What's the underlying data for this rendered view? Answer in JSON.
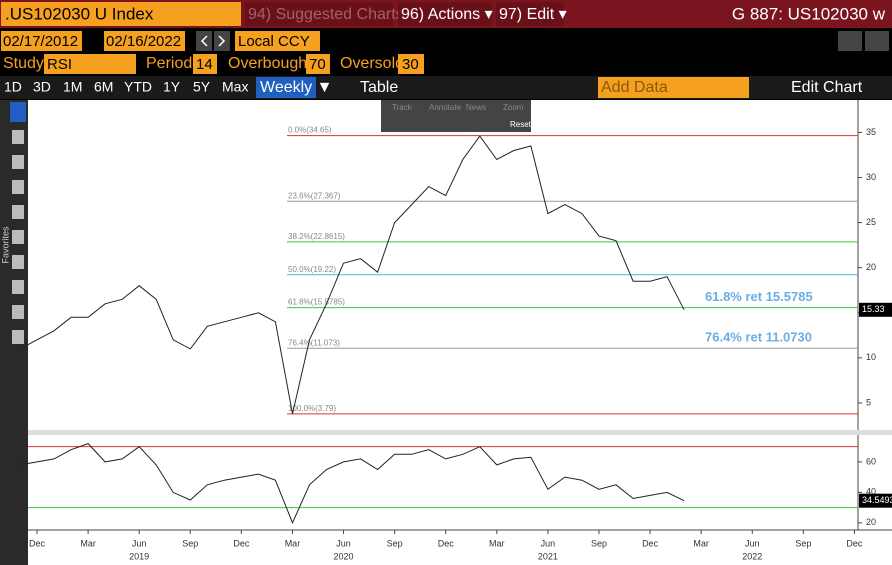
{
  "header": {
    "ticker": ".US102030 U  Index",
    "suggested": "94) Suggested Charts",
    "actions": "96) Actions ▾",
    "edit": "97) Edit ▾",
    "code": "G 887: US102030 w"
  },
  "dates": {
    "start": "02/17/2012",
    "end": "02/16/2022",
    "currency": "Local CCY"
  },
  "study": {
    "label": "Study",
    "name": "RSI",
    "period_label": "Period",
    "period": 14,
    "overbought_label": "Overbought",
    "overbought": 70,
    "oversold_label": "Oversold",
    "oversold": 30
  },
  "ranges": [
    "1D",
    "3D",
    "1M",
    "6M",
    "YTD",
    "1Y",
    "5Y",
    "Max"
  ],
  "frequency": "Weekly ▼",
  "table": "Table",
  "add_data": "Add Data",
  "edit_chart": "Edit Chart",
  "chart_tools": [
    "Track",
    "Annotate",
    "News",
    "Zoom",
    "Reset"
  ],
  "sidebar": "Favorites",
  "chart_data": [
    {
      "type": "line",
      "color": "#222222",
      "x": [
        "2018-11",
        "2018-12",
        "2019-01",
        "2019-02",
        "2019-03",
        "2019-04",
        "2019-05",
        "2019-06",
        "2019-07",
        "2019-08",
        "2019-09",
        "2019-10",
        "2019-11",
        "2019-12",
        "2020-01",
        "2020-02",
        "2020-03",
        "2020-04",
        "2020-05",
        "2020-06",
        "2020-07",
        "2020-08",
        "2020-09",
        "2020-10",
        "2020-11",
        "2020-12",
        "2021-01",
        "2021-02",
        "2021-03",
        "2021-04",
        "2021-05",
        "2021-06",
        "2021-07",
        "2021-08",
        "2021-09",
        "2021-10",
        "2021-11",
        "2021-12",
        "2022-01",
        "2022-02"
      ],
      "values": [
        11,
        12,
        13,
        14.5,
        14.5,
        16,
        16.5,
        18,
        16.5,
        12,
        11,
        13.5,
        14,
        14.5,
        15,
        14,
        3.8,
        12,
        16,
        20.5,
        21,
        19.5,
        25,
        27,
        29,
        28,
        32,
        34.6,
        32,
        33,
        33.5,
        26,
        27,
        26,
        23.5,
        23,
        18.5,
        18.5,
        19,
        15.33
      ],
      "ylim": [
        2,
        38.6
      ],
      "yticks": [
        5,
        10,
        15,
        20,
        25,
        30,
        35
      ],
      "levels": [
        {
          "label": "0.0%(34.65)",
          "value": 34.65,
          "color": "#e03030"
        },
        {
          "label": "23.6%(27.367)",
          "value": 27.367,
          "color": "#999999"
        },
        {
          "label": "38.2%(22.8615)",
          "value": 22.8615,
          "color": "#3cc83c"
        },
        {
          "label": "50.0%(19.22)",
          "value": 19.22,
          "color": "#33c7d6"
        },
        {
          "label": "61.8%(15.5785)",
          "value": 15.5785,
          "color": "#3cc83c"
        },
        {
          "label": "76.4%(11.073)",
          "value": 11.073,
          "color": "#999999"
        },
        {
          "label": "100.0%(3.79)",
          "value": 3.79,
          "color": "#e03030"
        }
      ],
      "annotations": [
        {
          "text": "61.8% ret 15.5785",
          "value": 15.5785
        },
        {
          "text": "76.4% ret 11.0730",
          "value": 11.073
        }
      ]
    },
    {
      "type": "line",
      "color": "#222222",
      "overbought_color": "#e03030",
      "oversold_color": "#3cc83c",
      "x": [
        "2018-11",
        "2018-12",
        "2019-01",
        "2019-02",
        "2019-03",
        "2019-04",
        "2019-05",
        "2019-06",
        "2019-07",
        "2019-08",
        "2019-09",
        "2019-10",
        "2019-11",
        "2019-12",
        "2020-01",
        "2020-02",
        "2020-03",
        "2020-04",
        "2020-05",
        "2020-06",
        "2020-07",
        "2020-08",
        "2020-09",
        "2020-10",
        "2020-11",
        "2020-12",
        "2021-01",
        "2021-02",
        "2021-03",
        "2021-04",
        "2021-05",
        "2021-06",
        "2021-07",
        "2021-08",
        "2021-09",
        "2021-10",
        "2021-11",
        "2021-12",
        "2022-01",
        "2022-02"
      ],
      "values": [
        58,
        60,
        62,
        68,
        72,
        60,
        62,
        70,
        58,
        40,
        35,
        45,
        48,
        50,
        52,
        48,
        20,
        45,
        55,
        60,
        62,
        55,
        65,
        65,
        68,
        62,
        65,
        70,
        58,
        62,
        63,
        42,
        50,
        48,
        42,
        45,
        36,
        38,
        40,
        34.5493
      ],
      "ylim": [
        15.3,
        77
      ],
      "yticks": [
        20,
        40,
        60
      ],
      "xticks": [
        {
          "value": "2018-12",
          "label": "Dec"
        },
        {
          "value": "2019-03",
          "label": "Mar"
        },
        {
          "value": "2019-06",
          "label": "Jun"
        },
        {
          "value": "2019-09",
          "label": "Sep"
        },
        {
          "value": "2019-12",
          "label": "Dec"
        },
        {
          "value": "2020-03",
          "label": "Mar"
        },
        {
          "value": "2020-06",
          "label": "Jun"
        },
        {
          "value": "2020-09",
          "label": "Sep"
        },
        {
          "value": "2020-12",
          "label": "Dec"
        },
        {
          "value": "2021-03",
          "label": "Mar"
        },
        {
          "value": "2021-06",
          "label": "Jun"
        },
        {
          "value": "2021-09",
          "label": "Sep"
        },
        {
          "value": "2021-12",
          "label": "Dec"
        },
        {
          "value": "2022-03",
          "label": "Mar"
        },
        {
          "value": "2022-06",
          "label": "Jun"
        },
        {
          "value": "2022-09",
          "label": "Sep"
        },
        {
          "value": "2022-12",
          "label": "Dec"
        }
      ],
      "year_ticks": [
        {
          "value": "2019-06",
          "label": "2019"
        },
        {
          "value": "2020-06",
          "label": "2020"
        },
        {
          "value": "2021-06",
          "label": "2021"
        },
        {
          "value": "2022-06",
          "label": "2022"
        }
      ]
    }
  ]
}
